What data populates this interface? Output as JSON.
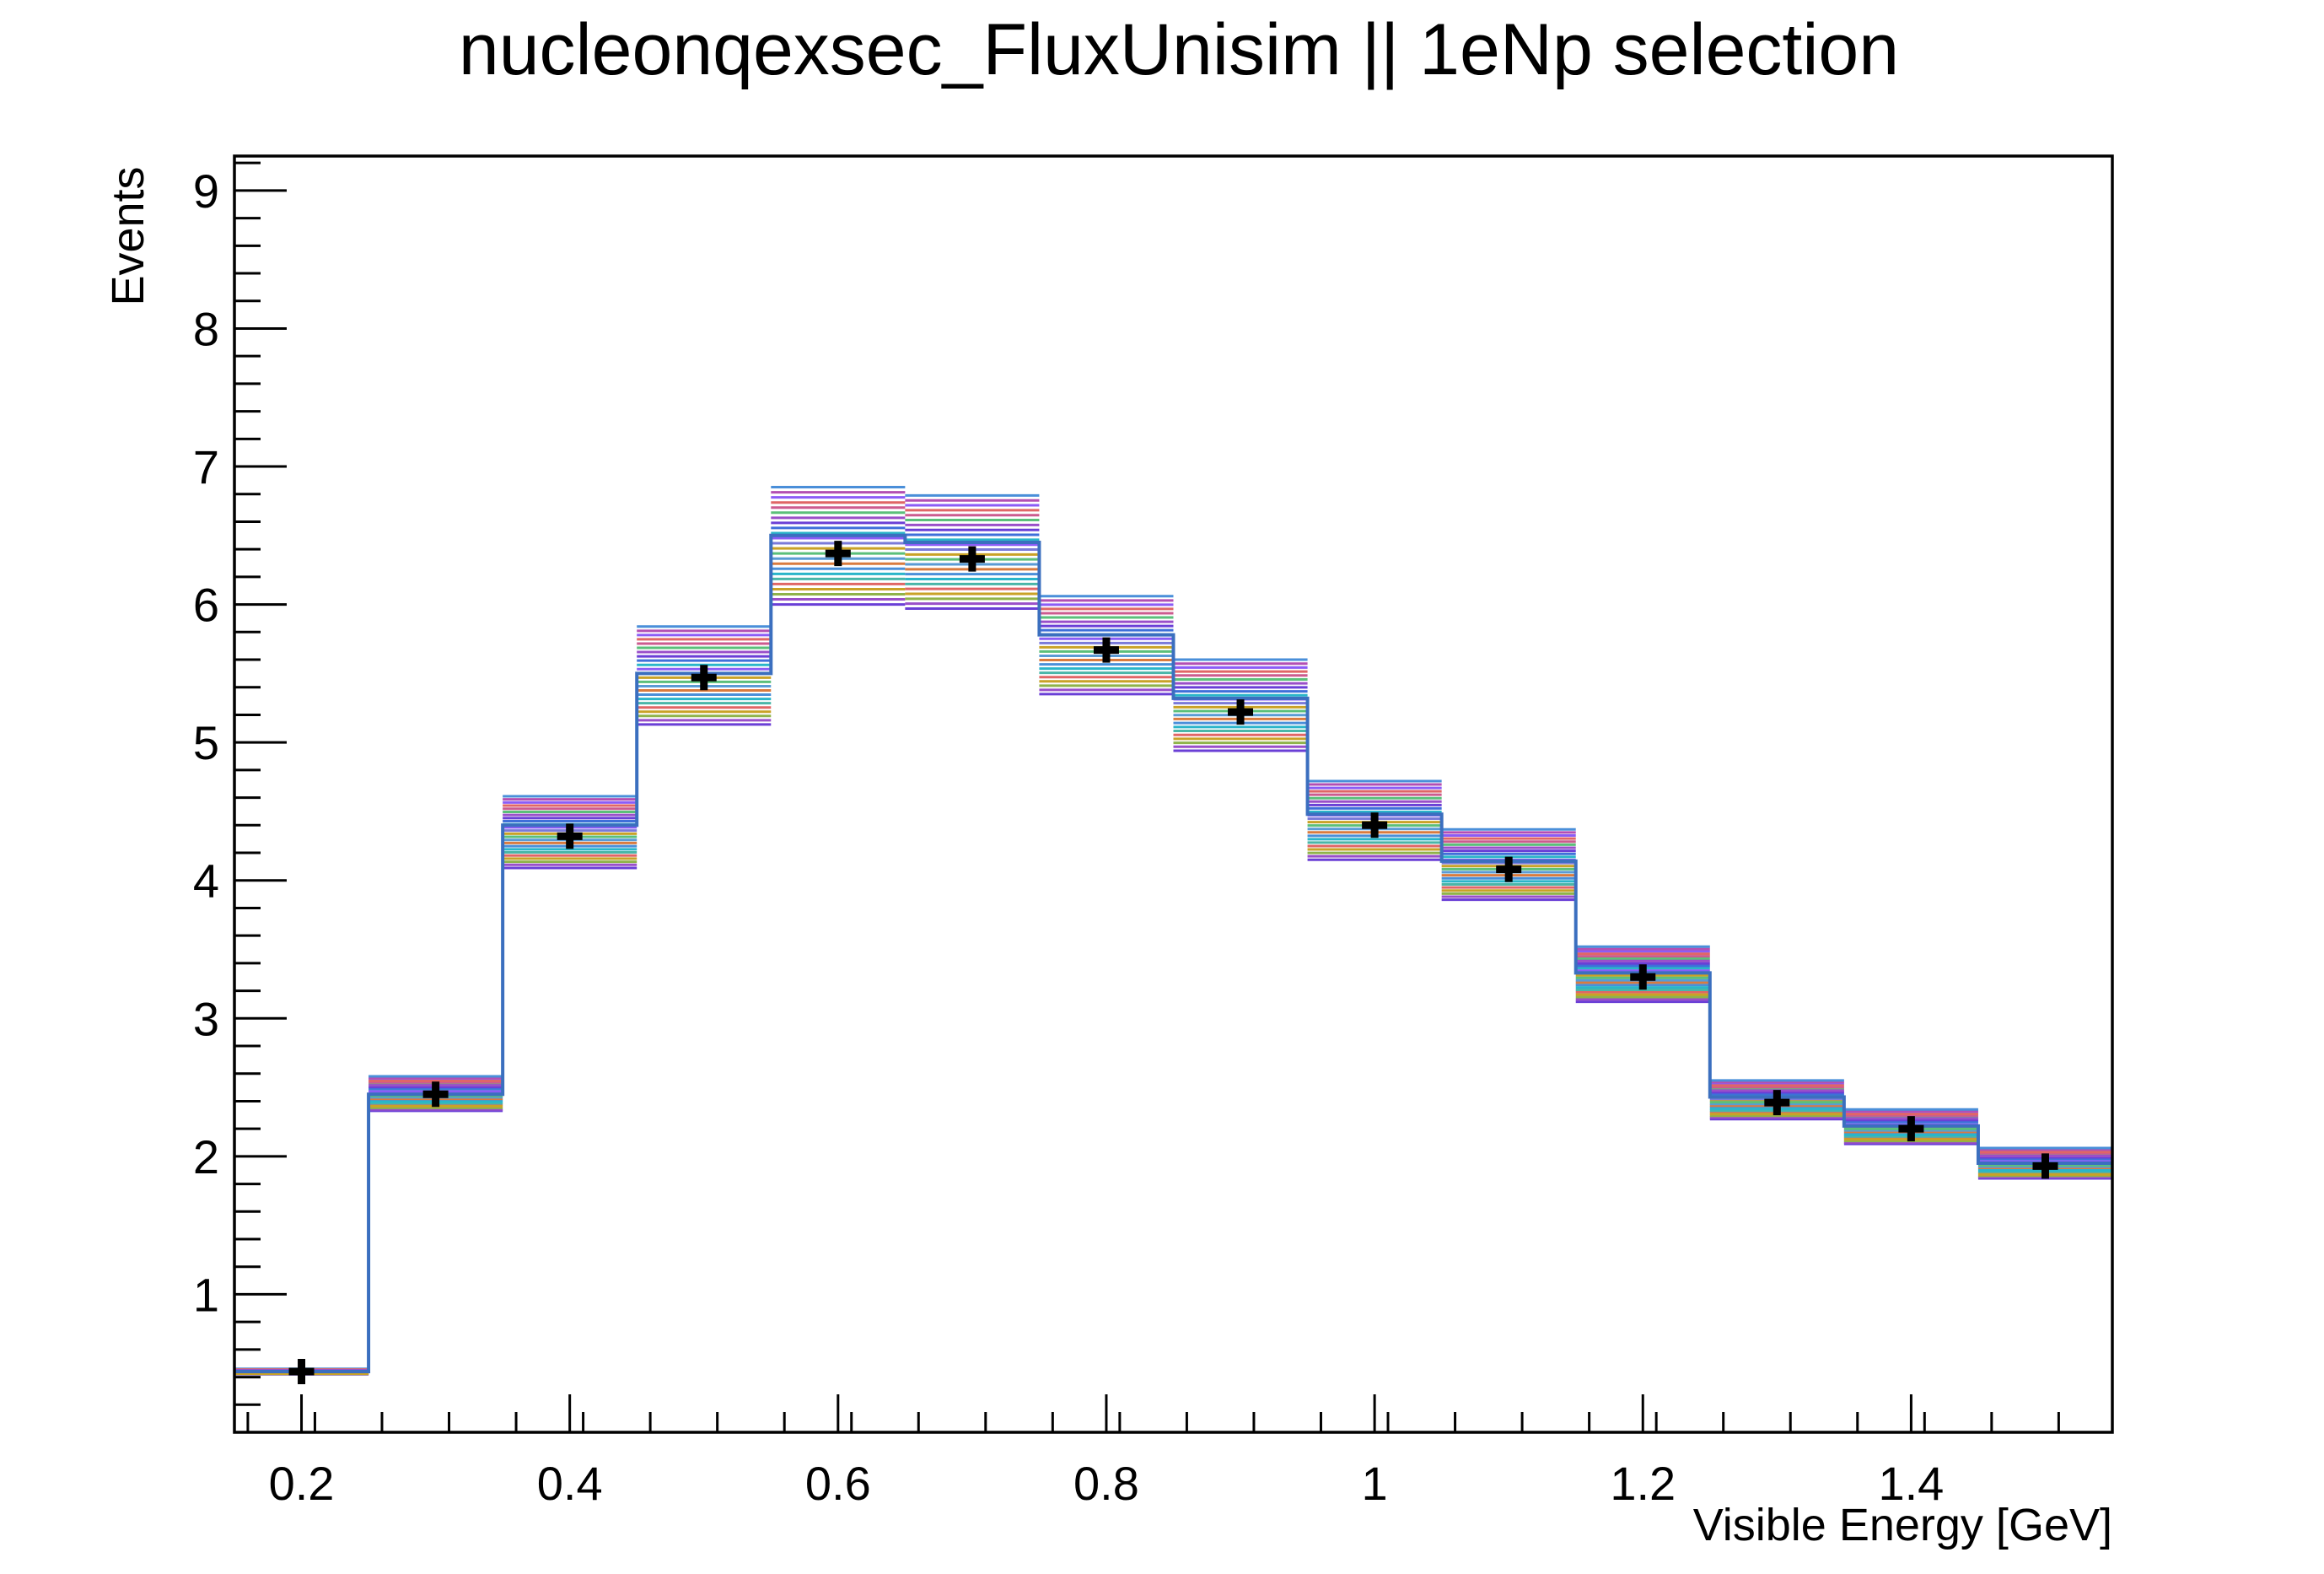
{
  "chart_data": {
    "type": "histogram",
    "title": "nucleonqexsec_FluxUnisim || 1eNp selection",
    "xlabel": "Visible Energy [GeV]",
    "ylabel": "Events",
    "xlim": [
      0.15,
      1.55
    ],
    "ylim": [
      0,
      9.25
    ],
    "bin_edges": [
      0.15,
      0.25,
      0.35,
      0.45,
      0.55,
      0.65,
      0.75,
      0.85,
      0.95,
      1.05,
      1.15,
      1.25,
      1.35,
      1.45,
      1.55
    ],
    "x_ticks": [
      {
        "value": 0.2,
        "label": "0.2"
      },
      {
        "value": 0.4,
        "label": "0.4"
      },
      {
        "value": 0.6,
        "label": "0.6"
      },
      {
        "value": 0.8,
        "label": "0.8"
      },
      {
        "value": 1.0,
        "label": "1"
      },
      {
        "value": 1.2,
        "label": "1.2"
      },
      {
        "value": 1.4,
        "label": "1.4"
      }
    ],
    "y_ticks": [
      {
        "value": 1,
        "label": "1"
      },
      {
        "value": 2,
        "label": "2"
      },
      {
        "value": 3,
        "label": "3"
      },
      {
        "value": 4,
        "label": "4"
      },
      {
        "value": 5,
        "label": "5"
      },
      {
        "value": 6,
        "label": "6"
      },
      {
        "value": 7,
        "label": "7"
      },
      {
        "value": 8,
        "label": "8"
      },
      {
        "value": 9,
        "label": "9"
      }
    ],
    "central_values": [
      0.44,
      2.45,
      4.32,
      5.47,
      6.37,
      6.33,
      5.67,
      5.22,
      4.4,
      4.08,
      3.3,
      2.39,
      2.2,
      1.93
    ],
    "cv_line_values": [
      0.44,
      2.45,
      4.4,
      5.5,
      6.5,
      6.45,
      5.78,
      5.32,
      4.48,
      4.14,
      3.33,
      2.43,
      2.22,
      1.95
    ],
    "variation_low": [
      0.42,
      2.33,
      4.09,
      5.13,
      6.0,
      5.97,
      5.35,
      4.94,
      4.15,
      3.86,
      3.12,
      2.27,
      2.09,
      1.84
    ],
    "variation_high": [
      0.46,
      2.58,
      4.61,
      5.84,
      6.85,
      6.79,
      6.06,
      5.6,
      4.72,
      4.37,
      3.52,
      2.55,
      2.34,
      2.06
    ],
    "n_universes": 24,
    "universe_colors": [
      "#6a3fd6",
      "#4a8fd9",
      "#2ab5c9",
      "#8b5cf6",
      "#e06666",
      "#c9a227",
      "#5bbf7a",
      "#9a4fc9",
      "#d97b3f",
      "#3f6fd9",
      "#b34fb3",
      "#49b6a8",
      "#7a7ad9",
      "#cc5b8f",
      "#8fb34a",
      "#5a9bd5"
    ],
    "cv_color": "#3b6fbf",
    "marker_color": "#000000",
    "grid": false,
    "legend": "none"
  }
}
